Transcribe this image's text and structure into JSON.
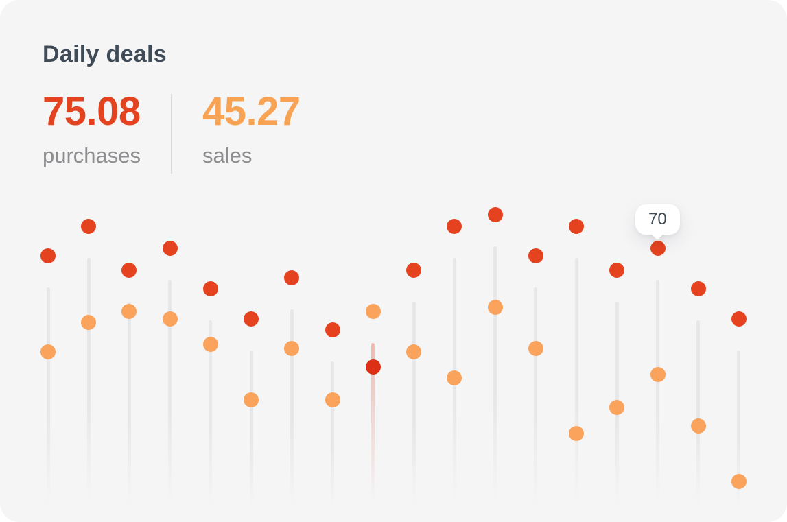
{
  "card": {
    "title": "Daily deals"
  },
  "stats": {
    "purchases": {
      "value": "75.08",
      "label": "purchases"
    },
    "sales": {
      "value": "45.27",
      "label": "sales"
    }
  },
  "colors": {
    "purchases_dot": "#e5421f",
    "purchases_dot_highlight": "#dc2f15",
    "sales_dot": "#f9a35c",
    "stat_purchases": "#e3431f",
    "stat_sales": "#f8a254",
    "title_text": "#3f4b56",
    "label_text": "#8e8e91",
    "stem_gray": "#e7e7e9",
    "stem_pink": "#f2b9ae",
    "card_bg": "#f5f5f6",
    "tooltip_bg": "#ffffff",
    "tooltip_text": "#3f4b56"
  },
  "chart_data": {
    "type": "scatter",
    "title": "Daily deals",
    "x": [
      1,
      2,
      3,
      4,
      5,
      6,
      7,
      8,
      9,
      10,
      11,
      12,
      13,
      14,
      15,
      16,
      17,
      18
    ],
    "series": [
      {
        "name": "purchases",
        "values": [
          68,
          76,
          64,
          70,
          59,
          51,
          62,
          48,
          38,
          64,
          76,
          79,
          68,
          76,
          64,
          70,
          59,
          51
        ]
      },
      {
        "name": "sales",
        "values": [
          42,
          50,
          53,
          51,
          44,
          29,
          43,
          29,
          53,
          42,
          35,
          54,
          43,
          20,
          27,
          36,
          22,
          7
        ]
      }
    ],
    "highlight_index": 8,
    "tooltip": {
      "index": 15,
      "series": "purchases",
      "label": "70"
    },
    "ylim": [
      0,
      83
    ],
    "xlabel": "",
    "ylabel": "",
    "grid": false,
    "x_axis_labels_visible": false,
    "y_axis_labels_visible": false,
    "legend_position": "none"
  }
}
